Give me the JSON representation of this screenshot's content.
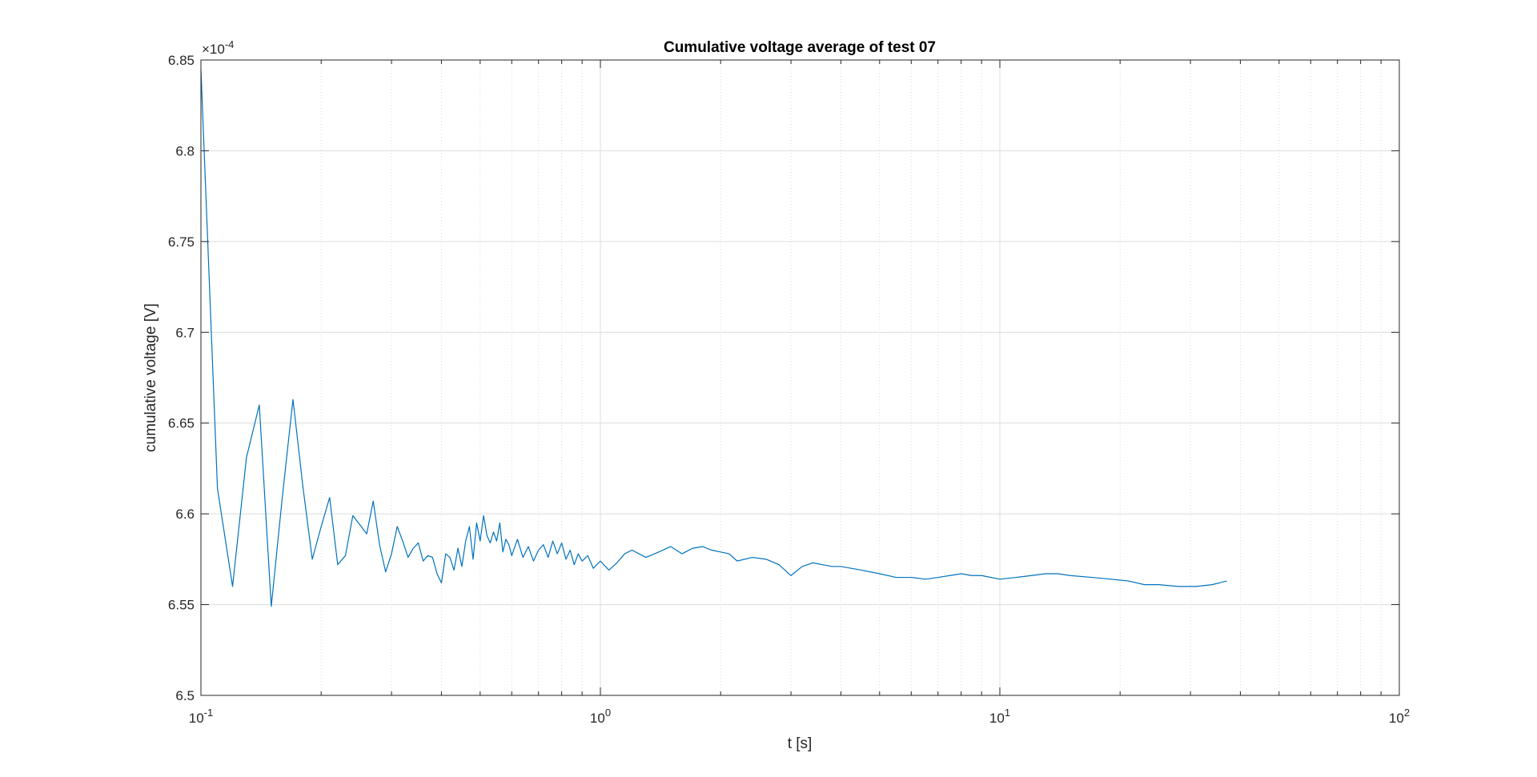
{
  "chart_data": {
    "type": "line",
    "title": "Cumulative voltage average of test 07",
    "xlabel": "t [s]",
    "ylabel": "cumulative voltage [V]",
    "xscale": "log",
    "xlim": [
      0.1,
      100
    ],
    "ylim": [
      6.5,
      6.85
    ],
    "y_multiplier": "×10",
    "y_multiplier_exponent": "-4",
    "grid": true,
    "minor_grid": true,
    "x_ticks": [
      {
        "value": 0.1,
        "base": "10",
        "exp": "-1"
      },
      {
        "value": 1,
        "base": "10",
        "exp": "0"
      },
      {
        "value": 10,
        "base": "10",
        "exp": "1"
      },
      {
        "value": 100,
        "base": "10",
        "exp": "2"
      }
    ],
    "y_ticks": [
      {
        "value": 6.5,
        "label": "6.5"
      },
      {
        "value": 6.55,
        "label": "6.55"
      },
      {
        "value": 6.6,
        "label": "6.6"
      },
      {
        "value": 6.65,
        "label": "6.65"
      },
      {
        "value": 6.7,
        "label": "6.7"
      },
      {
        "value": 6.75,
        "label": "6.75"
      },
      {
        "value": 6.8,
        "label": "6.8"
      },
      {
        "value": 6.85,
        "label": "6.85"
      }
    ],
    "series": [
      {
        "color": "#0072BD",
        "x": [
          0.1,
          0.11,
          0.12,
          0.13,
          0.14,
          0.15,
          0.16,
          0.17,
          0.18,
          0.19,
          0.2,
          0.21,
          0.22,
          0.23,
          0.24,
          0.25,
          0.26,
          0.27,
          0.28,
          0.29,
          0.3,
          0.31,
          0.32,
          0.33,
          0.34,
          0.35,
          0.36,
          0.37,
          0.38,
          0.39,
          0.4,
          0.41,
          0.42,
          0.43,
          0.44,
          0.45,
          0.46,
          0.47,
          0.48,
          0.49,
          0.5,
          0.51,
          0.52,
          0.53,
          0.54,
          0.55,
          0.56,
          0.57,
          0.58,
          0.59,
          0.6,
          0.62,
          0.64,
          0.66,
          0.68,
          0.7,
          0.72,
          0.74,
          0.76,
          0.78,
          0.8,
          0.82,
          0.84,
          0.86,
          0.88,
          0.9,
          0.93,
          0.96,
          1.0,
          1.05,
          1.1,
          1.15,
          1.2,
          1.3,
          1.4,
          1.5,
          1.6,
          1.7,
          1.8,
          1.9,
          2.0,
          2.1,
          2.2,
          2.4,
          2.6,
          2.8,
          3.0,
          3.2,
          3.4,
          3.6,
          3.8,
          4.0,
          4.5,
          5.0,
          5.5,
          6.0,
          6.5,
          7.0,
          7.5,
          8.0,
          8.5,
          9.0,
          10.0,
          11.0,
          12.0,
          13.0,
          14.0,
          15.0,
          17.0,
          19.0,
          21.0,
          23.0,
          25.0,
          28.0,
          31.0,
          34.0,
          37.0
        ],
        "y": [
          6.845,
          6.614,
          6.56,
          6.631,
          6.66,
          6.549,
          6.61,
          6.663,
          6.615,
          6.575,
          6.593,
          6.609,
          6.572,
          6.577,
          6.599,
          6.594,
          6.589,
          6.607,
          6.583,
          6.568,
          6.578,
          6.593,
          6.585,
          6.576,
          6.581,
          6.584,
          6.574,
          6.577,
          6.576,
          6.567,
          6.562,
          6.578,
          6.576,
          6.569,
          6.581,
          6.571,
          6.585,
          6.593,
          6.575,
          6.595,
          6.585,
          6.599,
          6.588,
          6.584,
          6.59,
          6.585,
          6.595,
          6.579,
          6.586,
          6.583,
          6.577,
          6.586,
          6.576,
          6.582,
          6.574,
          6.58,
          6.583,
          6.576,
          6.585,
          6.578,
          6.584,
          6.575,
          6.58,
          6.572,
          6.578,
          6.574,
          6.577,
          6.57,
          6.574,
          6.569,
          6.573,
          6.578,
          6.58,
          6.576,
          6.579,
          6.582,
          6.578,
          6.581,
          6.582,
          6.58,
          6.579,
          6.578,
          6.574,
          6.576,
          6.575,
          6.572,
          6.566,
          6.571,
          6.573,
          6.572,
          6.571,
          6.571,
          6.569,
          6.567,
          6.565,
          6.565,
          6.564,
          6.565,
          6.566,
          6.567,
          6.566,
          6.566,
          6.564,
          6.565,
          6.566,
          6.567,
          6.567,
          6.566,
          6.565,
          6.564,
          6.563,
          6.561,
          6.561,
          6.56,
          6.56,
          6.561,
          6.563
        ]
      }
    ]
  }
}
